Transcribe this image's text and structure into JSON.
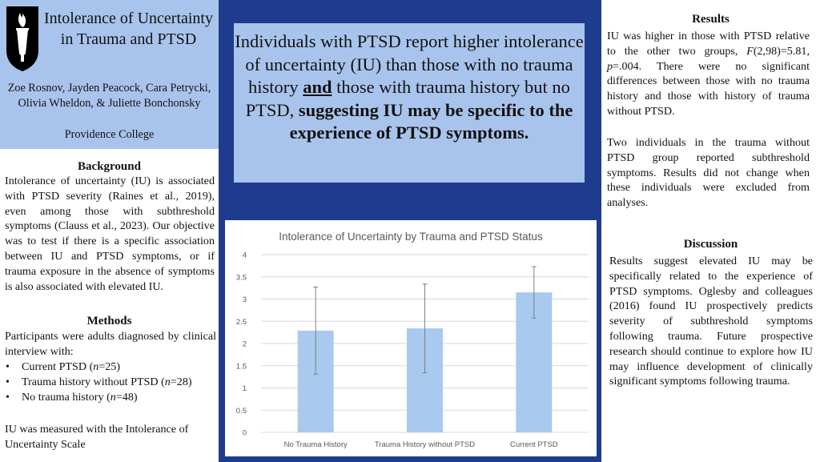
{
  "title_panel": {
    "title": "Intolerance of Uncertainty in Trauma and PTSD",
    "authors": "Zoe Rosnov, Jayden Peacock, Cara Petrycki, Olivia Wheldon, & Juliette Bonchonsky",
    "affiliation": "Providence College"
  },
  "background": {
    "heading": "Background",
    "text": "Intolerance of uncertainty (IU) is associated with PTSD severity (Raines et al., 2019), even among those with subthreshold symptoms (Clauss et al., 2023). Our objective was to test if there is a specific association between IU and PTSD symptoms, or if trauma exposure in the absence of symptoms is also associated with elevated IU."
  },
  "methods": {
    "heading": "Methods",
    "intro": "Participants were adults diagnosed by clinical interview with:",
    "groups": [
      {
        "label": "Current PTSD (",
        "n": "n",
        "count": "=25)"
      },
      {
        "label": "Trauma history without PTSD (",
        "n": "n",
        "count": "=28)"
      },
      {
        "label": "No trauma history (",
        "n": "n",
        "count": "=48)"
      }
    ],
    "measure": "IU was measured with the Intolerance of Uncertainty Scale"
  },
  "key_finding": {
    "part1": "Individuals with PTSD report higher intolerance of uncertainty (IU) than those with no trauma history ",
    "and": "and",
    "part2": " those with trauma history but no PTSD, ",
    "bold": "suggesting IU may be specific to the experience of PTSD symptoms."
  },
  "results": {
    "heading": "Results",
    "text_a": "IU was higher in those with PTSD relative to the other two groups, ",
    "stat_f": "F",
    "stat_f_val": "(2,98)=5.81, ",
    "stat_p": "p",
    "text_b": "=.004. There were no significant differences between those with no trauma history and those with history of trauma without PTSD.",
    "text2": "Two individuals in the trauma without PTSD group reported subthreshold symptoms. Results did not change when these individuals were excluded from analyses."
  },
  "discussion": {
    "heading": "Discussion",
    "text": "Results suggest elevated IU may be specifically related to the experience of PTSD symptoms. Oglesby and colleagues (2016) found IU prospectively predicts severity of subthreshold symptoms following trauma. Future prospective research should continue to explore how IU may influence development of clinically significant symptoms following trauma."
  },
  "chart_data": {
    "type": "bar",
    "title": "Intolerance of Uncertainty by Trauma and PTSD Status",
    "categories": [
      "No Trauma History",
      "Trauma History without PTSD",
      "Current PTSD"
    ],
    "values": [
      2.29,
      2.34,
      3.15
    ],
    "error_bars": {
      "upper": [
        3.27,
        3.34,
        3.73
      ],
      "lower": [
        1.31,
        1.34,
        2.57
      ]
    },
    "ylim": [
      0,
      4
    ],
    "yticks": [
      "0",
      "0.5",
      "1",
      "1.5",
      "2",
      "2.5",
      "3",
      "3.5",
      "4"
    ],
    "grid": true,
    "bar_color": "#a9c9ee",
    "xlabel": "",
    "ylabel": ""
  },
  "colors": {
    "panel_blue": "#a9c4ec",
    "navy": "#1f3b8d"
  },
  "icons": {
    "logo": "torch-logo-icon"
  }
}
